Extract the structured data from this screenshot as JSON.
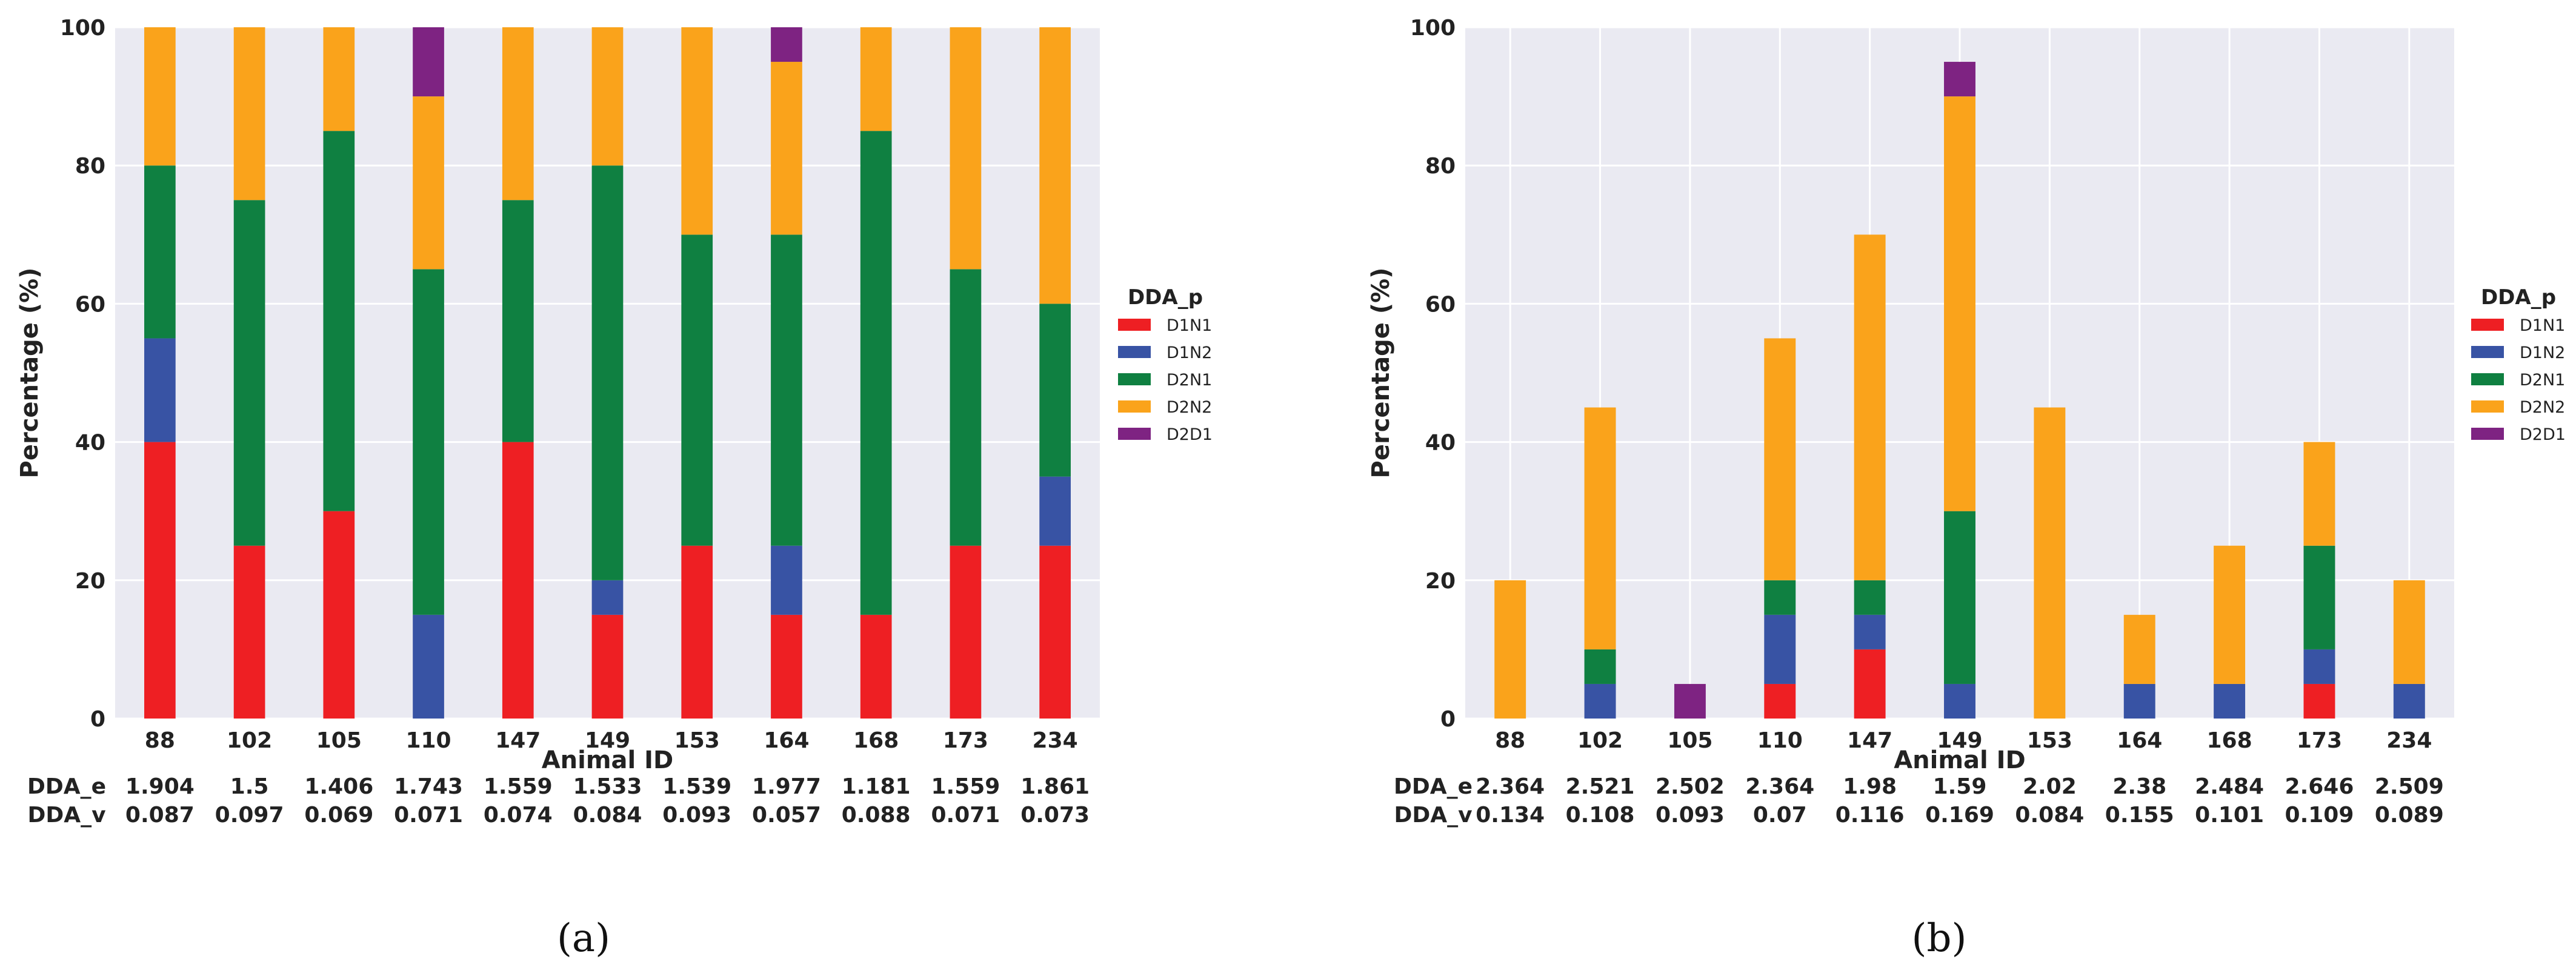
{
  "colors": {
    "D1N1": "#EE1F23",
    "D1N2": "#3853A4",
    "D2N1": "#0F8041",
    "D2N2": "#FAA31B",
    "D2D1": "#7E2382",
    "plot_bg": "#EAEAF2",
    "grid": "#FFFFFF"
  },
  "chart_data": [
    {
      "type": "bar",
      "stacked": true,
      "caption": "(a)",
      "xlabel": "Animal ID",
      "ylabel": "Percentage (%)",
      "ylim": [
        0,
        100
      ],
      "yticks": [
        "0",
        "20",
        "40",
        "60",
        "80",
        "100"
      ],
      "grid": true,
      "legend": {
        "title": "DDA_p",
        "placement": "right",
        "entries": [
          "D1N1",
          "D1N2",
          "D2N1",
          "D2N2",
          "D2D1"
        ]
      },
      "categories": [
        "88",
        "102",
        "105",
        "110",
        "147",
        "149",
        "153",
        "164",
        "168",
        "173",
        "234"
      ],
      "series": [
        {
          "name": "D1N1",
          "values": [
            40,
            25,
            30,
            0,
            40,
            15,
            25,
            15,
            15,
            25,
            25
          ]
        },
        {
          "name": "D1N2",
          "values": [
            15,
            0,
            0,
            15,
            0,
            5,
            0,
            10,
            0,
            0,
            10
          ]
        },
        {
          "name": "D2N1",
          "values": [
            25,
            50,
            55,
            50,
            35,
            60,
            45,
            45,
            70,
            40,
            25
          ]
        },
        {
          "name": "D2N2",
          "values": [
            20,
            25,
            15,
            25,
            25,
            20,
            30,
            25,
            15,
            35,
            40
          ]
        },
        {
          "name": "D2D1",
          "values": [
            0,
            0,
            0,
            10,
            0,
            0,
            0,
            5,
            0,
            0,
            0
          ]
        }
      ],
      "extra_rows": [
        {
          "label": "DDA_e",
          "values": [
            "1.904",
            "1.5",
            "1.406",
            "1.743",
            "1.559",
            "1.533",
            "1.539",
            "1.977",
            "1.181",
            "1.559",
            "1.861"
          ]
        },
        {
          "label": "DDA_v",
          "values": [
            "0.087",
            "0.097",
            "0.069",
            "0.071",
            "0.074",
            "0.084",
            "0.093",
            "0.057",
            "0.088",
            "0.071",
            "0.073"
          ]
        }
      ]
    },
    {
      "type": "bar",
      "stacked": true,
      "caption": "(b)",
      "xlabel": "Animal ID",
      "ylabel": "Percentage (%)",
      "ylim": [
        0,
        100
      ],
      "yticks": [
        "0",
        "20",
        "40",
        "60",
        "80",
        "100"
      ],
      "grid": true,
      "legend": {
        "title": "DDA_p",
        "placement": "right",
        "entries": [
          "D1N1",
          "D1N2",
          "D2N1",
          "D2N2",
          "D2D1"
        ]
      },
      "categories": [
        "88",
        "102",
        "105",
        "110",
        "147",
        "149",
        "153",
        "164",
        "168",
        "173",
        "234"
      ],
      "series": [
        {
          "name": "D1N1",
          "values": [
            0,
            0,
            0,
            5,
            10,
            0,
            0,
            0,
            0,
            5,
            0
          ]
        },
        {
          "name": "D1N2",
          "values": [
            0,
            5,
            0,
            10,
            5,
            5,
            0,
            5,
            5,
            5,
            5
          ]
        },
        {
          "name": "D2N1",
          "values": [
            0,
            5,
            0,
            5,
            5,
            25,
            0,
            0,
            0,
            15,
            0
          ]
        },
        {
          "name": "D2N2",
          "values": [
            20,
            35,
            0,
            35,
            50,
            60,
            45,
            10,
            20,
            15,
            15
          ]
        },
        {
          "name": "D2D1",
          "values": [
            0,
            0,
            5,
            0,
            0,
            5,
            0,
            0,
            0,
            0,
            0
          ]
        }
      ],
      "extra_rows": [
        {
          "label": "DDA_e",
          "values": [
            "2.364",
            "2.521",
            "2.502",
            "2.364",
            "1.98",
            "1.59",
            "2.02",
            "2.38",
            "2.484",
            "2.646",
            "2.509"
          ]
        },
        {
          "label": "DDA_v",
          "values": [
            "0.134",
            "0.108",
            "0.093",
            "0.07",
            "0.116",
            "0.169",
            "0.084",
            "0.155",
            "0.101",
            "0.109",
            "0.089"
          ]
        }
      ]
    }
  ]
}
